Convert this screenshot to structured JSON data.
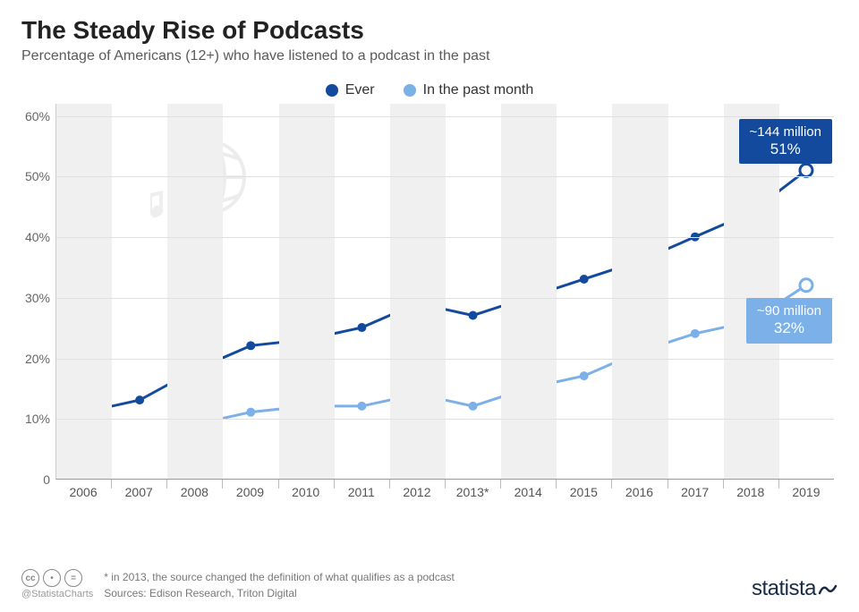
{
  "title": "The Steady Rise of Podcasts",
  "subtitle": "Percentage of Americans (12+) who have listened to a podcast in the past",
  "legend": {
    "ever": {
      "label": "Ever",
      "color": "#134a9e"
    },
    "month": {
      "label": "In the past month",
      "color": "#7cb0e8"
    }
  },
  "chart": {
    "type": "line",
    "background": "#ffffff",
    "band_color": "#f0f0f0",
    "grid_color": "#e0e0e0",
    "ylim": [
      0,
      62
    ],
    "yticks": [
      0,
      10,
      20,
      30,
      40,
      50,
      60
    ],
    "ytick_labels": [
      "0",
      "10%",
      "20%",
      "30%",
      "40%",
      "50%",
      "60%"
    ],
    "categories": [
      "2006",
      "2007",
      "2008",
      "2009",
      "2010",
      "2011",
      "2012",
      "2013*",
      "2014",
      "2015",
      "2016",
      "2017",
      "2018",
      "2019"
    ],
    "series": {
      "ever": {
        "values": [
          11,
          13,
          18,
          22,
          23,
          25,
          29,
          27,
          30,
          33,
          36,
          40,
          44,
          51
        ],
        "color": "#134a9e",
        "line_width": 3,
        "marker_radius": 5
      },
      "month": {
        "values": [
          null,
          null,
          9,
          11,
          12,
          12,
          14,
          12,
          15,
          17,
          21,
          24,
          26,
          32
        ],
        "color": "#7cb0e8",
        "line_width": 3,
        "marker_radius": 5
      }
    },
    "open_markers": {
      "ever_start": 0,
      "ever_end": 13,
      "month_start": 2,
      "month_end": 13
    },
    "callouts": {
      "ever": {
        "count": "~144 million",
        "pct": "51%",
        "bg": "#134a9e"
      },
      "month": {
        "count": "~90 million",
        "pct": "32%",
        "bg": "#7cb0e8"
      }
    },
    "decorative_globe": {
      "color": "#cfcfcf"
    }
  },
  "footer": {
    "footnote": "* in 2013, the source changed the definition of what qualifies as a podcast",
    "source": "Sources: Edison Research, Triton Digital",
    "handle": "@StatistaCharts",
    "brand": "statista"
  }
}
